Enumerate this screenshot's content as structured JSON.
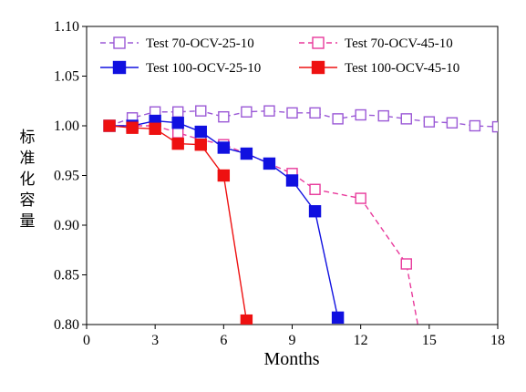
{
  "chart_data": {
    "type": "line",
    "xlabel": "Months",
    "ylabel": "标准化容量",
    "xlim": [
      0,
      18
    ],
    "ylim": [
      0.8,
      1.1
    ],
    "xticks": [
      0,
      3,
      6,
      9,
      12,
      15,
      18
    ],
    "yticks": [
      "0.80",
      "0.85",
      "0.90",
      "0.95",
      "1.00",
      "1.05",
      "1.10"
    ],
    "grid": false,
    "legend_position": "top",
    "series": [
      {
        "name": "Test 70-OCV-25-10",
        "color": "#9b59d6",
        "line_style": "dashed",
        "marker": "open-square",
        "x": [
          1,
          2,
          3,
          4,
          5,
          6,
          7,
          8,
          9,
          10,
          11,
          12,
          13,
          14,
          15,
          16,
          17,
          18
        ],
        "y": [
          1.0,
          1.008,
          1.014,
          1.014,
          1.015,
          1.009,
          1.014,
          1.015,
          1.013,
          1.013,
          1.007,
          1.011,
          1.01,
          1.007,
          1.004,
          1.003,
          1.0,
          0.999
        ]
      },
      {
        "name": "Test 70-OCV-45-10",
        "color": "#e8399b",
        "line_style": "dashed",
        "marker": "open-square",
        "x": [
          1,
          2,
          3,
          4,
          5,
          6,
          7,
          8,
          9,
          10,
          12,
          14,
          14.5
        ],
        "y": [
          1.0,
          1.0,
          1.0,
          0.993,
          0.986,
          0.981,
          0.972,
          0.962,
          0.952,
          0.936,
          0.927,
          0.861,
          0.8
        ],
        "last_point_marker": false
      },
      {
        "name": "Test 100-OCV-25-10",
        "color": "#1010e0",
        "line_style": "solid",
        "marker": "filled-square",
        "x": [
          1,
          2,
          3,
          4,
          5,
          6,
          7,
          8,
          9,
          10,
          11
        ],
        "y": [
          1.0,
          1.0,
          1.005,
          1.003,
          0.994,
          0.978,
          0.972,
          0.962,
          0.945,
          0.914,
          0.807
        ]
      },
      {
        "name": "Test 100-OCV-45-10",
        "color": "#ee1111",
        "line_style": "solid",
        "marker": "filled-square",
        "x": [
          1,
          2,
          3,
          4,
          5,
          6,
          7
        ],
        "y": [
          1.0,
          0.998,
          0.997,
          0.982,
          0.981,
          0.95,
          0.804
        ]
      }
    ]
  }
}
